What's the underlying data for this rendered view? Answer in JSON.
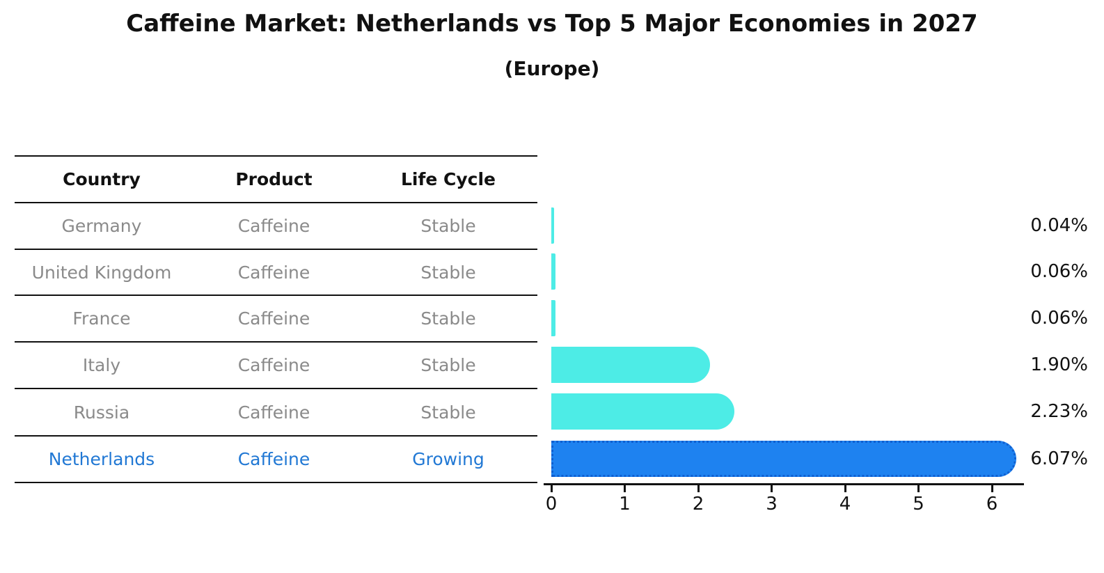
{
  "header": {
    "title": "Caffeine Market: Netherlands vs Top 5 Major Economies in 2027",
    "subtitle": "(Europe)"
  },
  "table": {
    "columns": [
      "Country",
      "Product",
      "Life Cycle"
    ],
    "rows": [
      {
        "country": "Germany",
        "product": "Caffeine",
        "life_cycle": "Stable",
        "highlighted": false
      },
      {
        "country": "United Kingdom",
        "product": "Caffeine",
        "life_cycle": "Stable",
        "highlighted": false
      },
      {
        "country": "France",
        "product": "Caffeine",
        "life_cycle": "Stable",
        "highlighted": false
      },
      {
        "country": "Italy",
        "product": "Caffeine",
        "life_cycle": "Stable",
        "highlighted": false
      },
      {
        "country": "Russia",
        "product": "Caffeine",
        "life_cycle": "Stable",
        "highlighted": false
      },
      {
        "country": "Netherlands",
        "product": "Caffeine",
        "life_cycle": "Growing",
        "highlighted": true
      }
    ]
  },
  "chart_data": {
    "type": "bar",
    "orientation": "horizontal",
    "title": "Caffeine Market: Netherlands vs Top 5 Major Economies in 2027",
    "subtitle": "(Europe)",
    "categories": [
      "Germany",
      "United Kingdom",
      "France",
      "Italy",
      "Russia",
      "Netherlands"
    ],
    "values": [
      0.04,
      0.06,
      0.06,
      1.9,
      2.23,
      6.07
    ],
    "value_labels": [
      "0.04%",
      "0.06%",
      "0.06%",
      "1.90%",
      "2.23%",
      "6.07%"
    ],
    "xlabel": "",
    "ylabel": "",
    "xlim": [
      0,
      6.43
    ],
    "xticks": [
      "0",
      "1",
      "2",
      "3",
      "4",
      "5",
      "6"
    ],
    "grid": false,
    "legend": "none",
    "highlighted_category": "Netherlands",
    "colors": {
      "bar_default": "#4DECE6",
      "bar_highlight": "#1E82F0",
      "bar_highlight_edge": "#0F5FD0",
      "highlight_text": "#2178D4",
      "row_text": "#8A8A8A",
      "axis": "#111111"
    }
  }
}
